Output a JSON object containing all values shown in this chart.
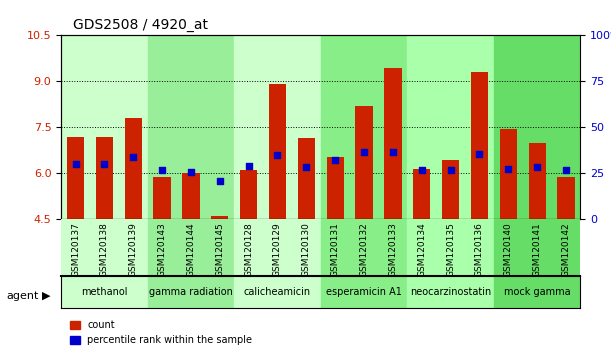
{
  "title": "GDS2508 / 4920_at",
  "samples": [
    "GSM120137",
    "GSM120138",
    "GSM120139",
    "GSM120143",
    "GSM120144",
    "GSM120145",
    "GSM120128",
    "GSM120129",
    "GSM120130",
    "GSM120131",
    "GSM120132",
    "GSM120133",
    "GSM120134",
    "GSM120135",
    "GSM120136",
    "GSM120140",
    "GSM120141",
    "GSM120142"
  ],
  "counts": [
    7.2,
    7.2,
    7.8,
    5.9,
    6.0,
    4.6,
    6.1,
    8.9,
    7.15,
    6.55,
    8.2,
    9.45,
    6.15,
    6.45,
    9.3,
    7.45,
    7.0,
    5.9
  ],
  "percentiles": [
    6.3,
    6.3,
    6.55,
    6.1,
    6.05,
    5.75,
    6.25,
    6.6,
    6.2,
    6.45,
    6.7,
    6.7,
    6.1,
    6.1,
    6.65,
    6.15,
    6.2,
    6.1
  ],
  "groups": [
    {
      "label": "methanol",
      "start": 0,
      "end": 3,
      "color": "#ccffcc"
    },
    {
      "label": "gamma radiation",
      "start": 3,
      "end": 6,
      "color": "#99ee99"
    },
    {
      "label": "calicheamicin",
      "start": 6,
      "end": 9,
      "color": "#ccffcc"
    },
    {
      "label": "esperamicin A1",
      "start": 9,
      "end": 12,
      "color": "#88ee88"
    },
    {
      "label": "neocarzinostatin",
      "start": 12,
      "end": 15,
      "color": "#aaffaa"
    },
    {
      "label": "mock gamma",
      "start": 15,
      "end": 18,
      "color": "#66dd66"
    }
  ],
  "bar_color": "#cc2200",
  "dot_color": "#0000cc",
  "ymin": 4.5,
  "ymax": 10.5,
  "yticks": [
    4.5,
    6.0,
    7.5,
    9.0,
    10.5
  ],
  "yticks_right": [
    0,
    25,
    50,
    75,
    100
  ],
  "grid_vals": [
    6.0,
    7.5,
    9.0
  ],
  "bg_color": "#e8e8e8",
  "bar_width": 0.6
}
